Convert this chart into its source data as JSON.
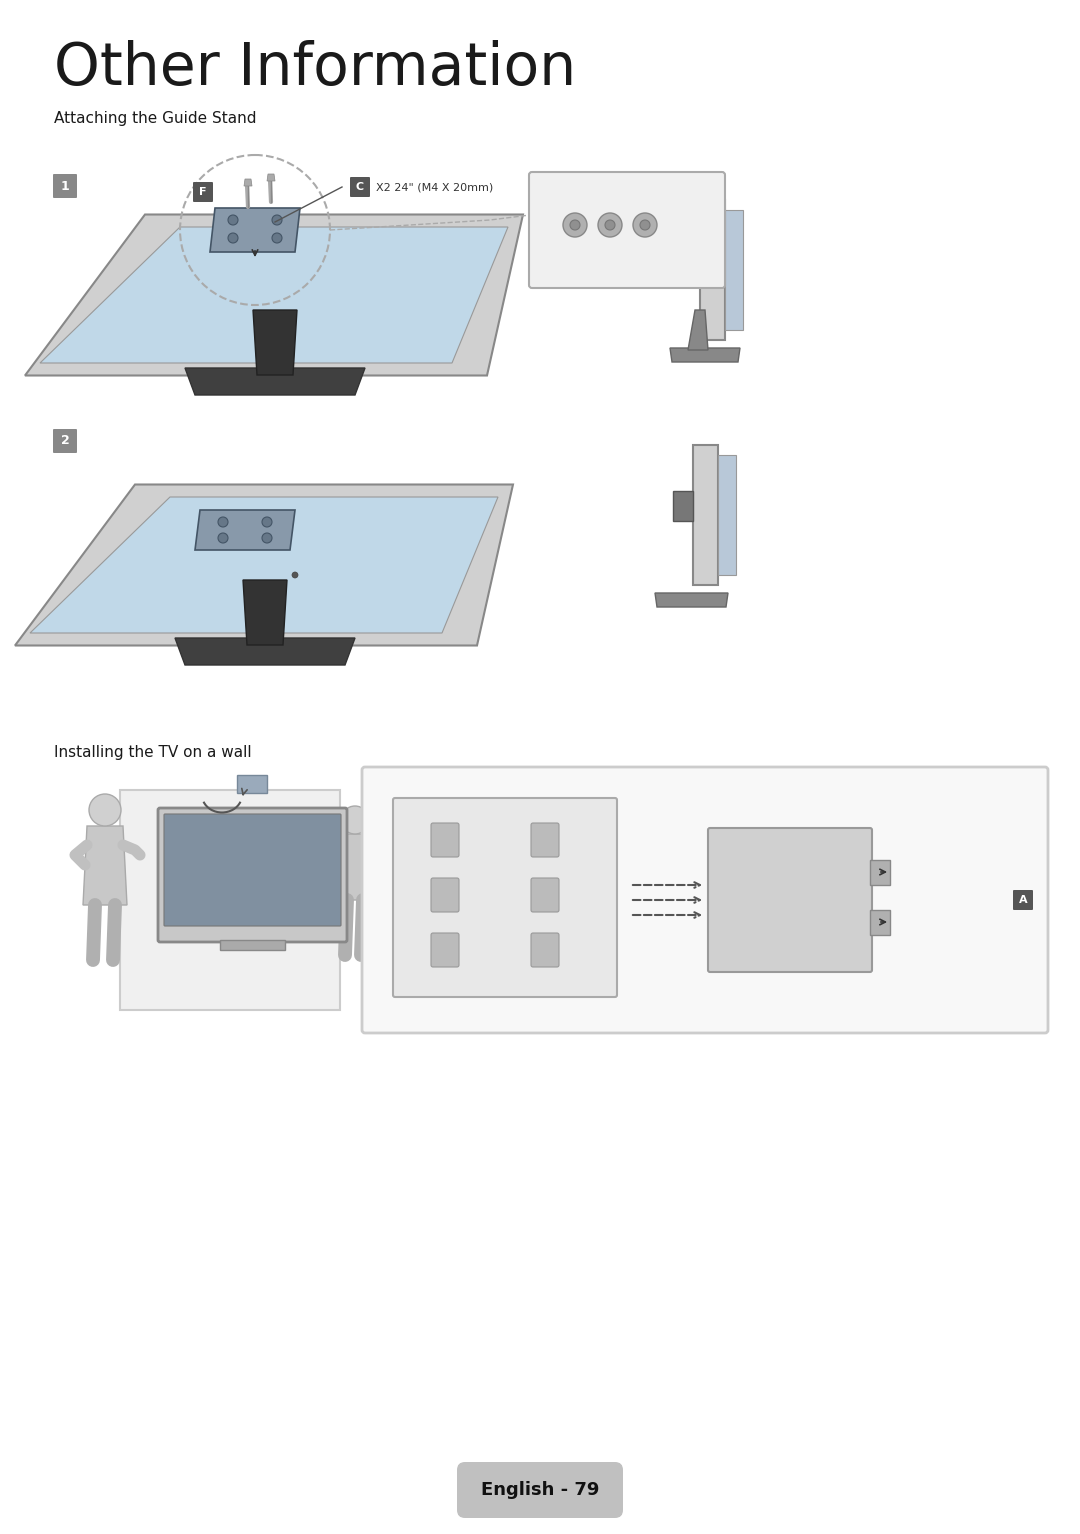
{
  "title": "Other Information",
  "subtitle1": "Attaching the Guide Stand",
  "subtitle2": "Installing the TV on a wall",
  "footer_text": "English - 79",
  "title_fontsize": 42,
  "subtitle_fontsize": 11,
  "footer_fontsize": 13,
  "bg_color": "#ffffff",
  "text_color": "#1a1a1a",
  "step_bg": "#888888",
  "screw_text": "X2 24\" (M4 X 20mm)"
}
